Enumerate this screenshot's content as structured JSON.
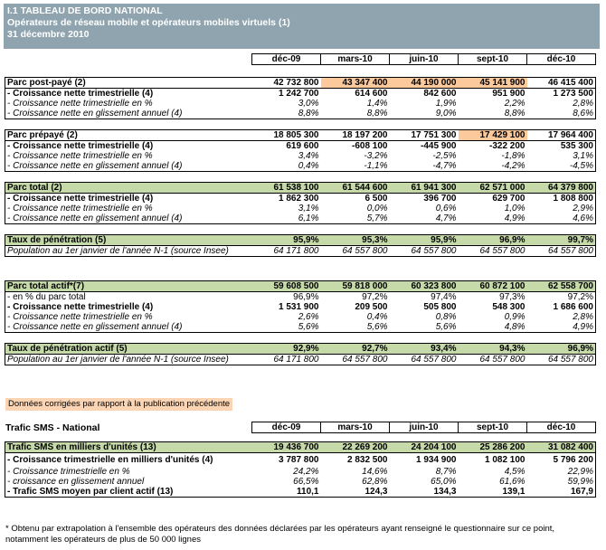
{
  "banner": {
    "line1": "I.1 TABLEAU DE BORD NATIONAL",
    "line2": "Opérateurs de réseau mobile et opérateurs mobiles virtuels (1)",
    "line3": "31 décembre 2010"
  },
  "columns": [
    "déc-09",
    "mars-10",
    "juin-10",
    "sept-10",
    "déc-10"
  ],
  "postpaye": {
    "title": [
      "Parc post-payé (2)",
      "42 732 800",
      "43 347 400",
      "44 190 000",
      "45 141 900",
      "46 415 400"
    ],
    "r1": [
      "- Croissance nette trimestrielle (4)",
      "1 242 700",
      "614 600",
      "842 600",
      "951 900",
      "1 273 500"
    ],
    "r2": [
      "- Croissance nette trimestrielle en %",
      "3,0%",
      "1,4%",
      "1,9%",
      "2,2%",
      "2,8%"
    ],
    "r3": [
      "- Croissance nette en glissement annuel (4)",
      "8,8%",
      "8,8%",
      "9,0%",
      "8,8%",
      "8,6%"
    ]
  },
  "prepaye": {
    "title": [
      "Parc prépayé (2)",
      "18 805 300",
      "18 197 200",
      "17 751 300",
      "17 429 100",
      "17 964 400"
    ],
    "r1": [
      "- Croissance nette trimestrielle (4)",
      "619 600",
      "-608 100",
      "-445 900",
      "-322 200",
      "535 300"
    ],
    "r2": [
      "- Croissance nette trimestrielle en %",
      "3,4%",
      "-3,2%",
      "-2,5%",
      "-1,8%",
      "3,1%"
    ],
    "r3": [
      "- Croissance nette en glissement annuel (4)",
      "0,4%",
      "-1,1%",
      "-4,7%",
      "-4,2%",
      "-4,5%"
    ]
  },
  "total": {
    "title": [
      "Parc total (2)",
      "61 538 100",
      "61 544 600",
      "61 941 300",
      "62 571 000",
      "64 379 800"
    ],
    "r1": [
      "- Croissance nette trimestrielle (4)",
      "1 862 300",
      "6 500",
      "396 700",
      "629 700",
      "1 808 800"
    ],
    "r2": [
      "- Croissance nette trimestrielle en %",
      "3,1%",
      "0,0%",
      "0,6%",
      "1,0%",
      "2,9%"
    ],
    "r3": [
      "- Croissance nette en glissement annuel (4)",
      "6,1%",
      "5,7%",
      "4,7%",
      "4,9%",
      "4,6%"
    ]
  },
  "penetration": {
    "title": [
      "Taux de pénétration (5)",
      "95,9%",
      "95,3%",
      "95,9%",
      "96,9%",
      "99,7%"
    ],
    "pop": [
      "Population au 1er janvier de l'année N-1 (source Insee)",
      "64 171 800",
      "64 557 800",
      "64 557 800",
      "64 557 800",
      "64 557 800"
    ]
  },
  "actif": {
    "title": [
      "Parc total actif*(7)",
      "59 608 500",
      "59 818 000",
      "60 323 800",
      "60 872 100",
      "62 558 700"
    ],
    "r0": [
      "- en % du parc total",
      "96,9%",
      "97,2%",
      "97,4%",
      "97,3%",
      "97,2%"
    ],
    "r1": [
      "- Croissance nette trimestrielle (4)",
      "1 531 900",
      "209 500",
      "505 800",
      "548 300",
      "1 686 600"
    ],
    "r2": [
      "- Croissance nette trimestrielle en %",
      "2,6%",
      "0,4%",
      "0,8%",
      "0,9%",
      "2,8%"
    ],
    "r3": [
      "- Croissance nette en glissement annuel (4)",
      "5,6%",
      "5,6%",
      "5,6%",
      "4,8%",
      "4,9%"
    ]
  },
  "penetration_actif": {
    "title": [
      "Taux de pénétration actif (5)",
      "92,9%",
      "92,7%",
      "93,4%",
      "94,3%",
      "96,9%"
    ],
    "pop": [
      "Population au 1er janvier de l'année N-1 (source Insee)",
      "64 171 800",
      "64 557 800",
      "64 557 800",
      "64 557 800",
      "64 557 800"
    ]
  },
  "note": "Données corrigées par rapport à la publication précédente",
  "sms": {
    "title": "Trafic SMS - National",
    "main": [
      "Trafic SMS en milliers d'unités (13)",
      "19 436 700",
      "22 269 200",
      "24 204 100",
      "25 286 200",
      "31 082 400"
    ],
    "r1": [
      "- Croissance trimestrielle en milliers d'unités (4)",
      "3 787 800",
      "2 832 500",
      "1 934 900",
      "1 082 100",
      "5 796 200"
    ],
    "r2": [
      "- Croissance trimestrielle en %",
      "24,2%",
      "14,6%",
      "8,7%",
      "4,5%",
      "22,9%"
    ],
    "r3": [
      "- croissance en glissement annuel",
      "66,5%",
      "62,8%",
      "65,0%",
      "61,6%",
      "59,9%"
    ],
    "r4": [
      "- Trafic SMS moyen par client actif (13)",
      "110,1",
      "124,3",
      "134,3",
      "139,1",
      "167,9"
    ]
  },
  "footnote": "* Obtenu par extrapolation à l'ensemble des opérateurs des données déclarées par les opérateurs ayant renseigné le questionnaire sur ce point, notamment les opérateurs de plus de 50 000 lignes"
}
